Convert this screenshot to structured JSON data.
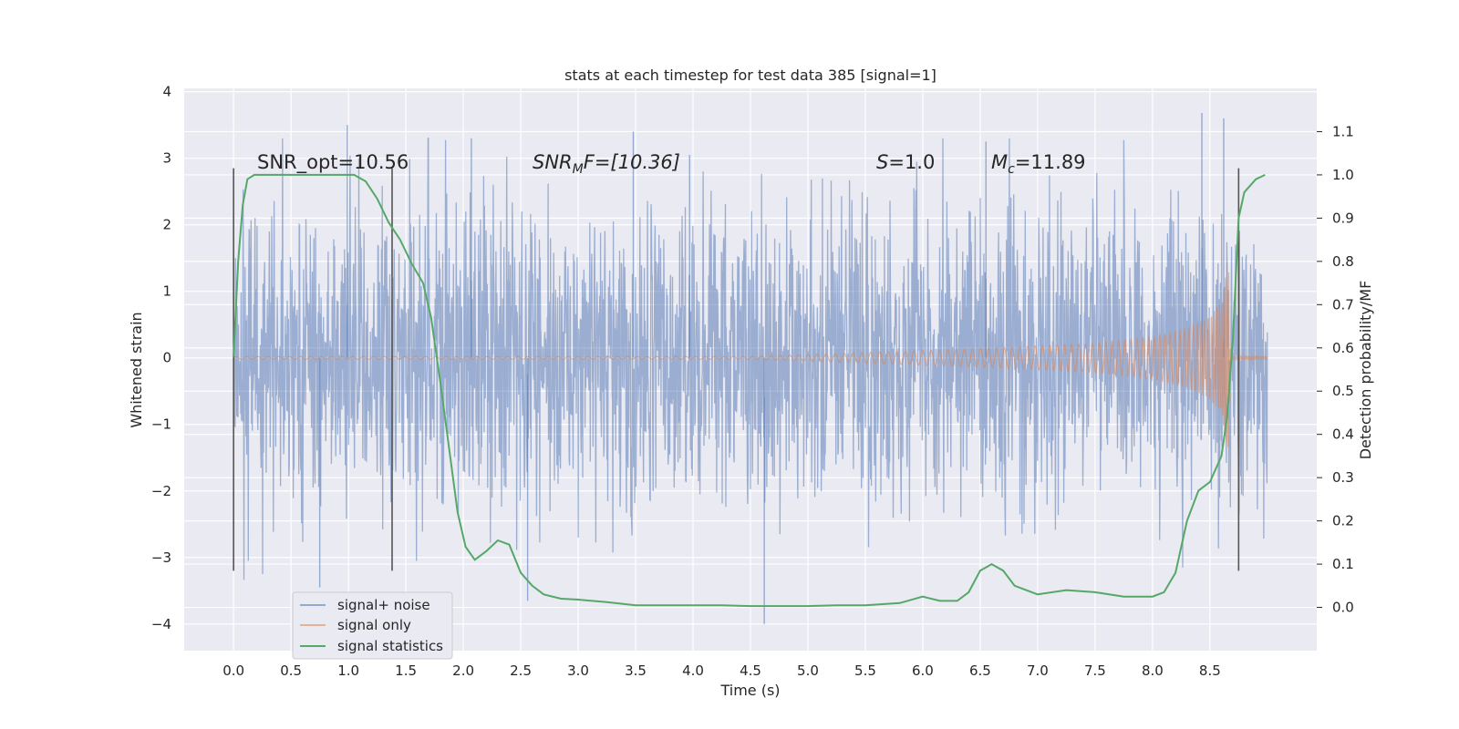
{
  "chart_data": {
    "type": "line",
    "title": "stats at each timestep for test data 385 [signal=1]",
    "xlabel": "Time (s)",
    "ylabel": "Whitened strain",
    "y2label": "Detection probability/MF",
    "xlim": [
      -0.43,
      9.43
    ],
    "ylim": [
      -4.4,
      4.05
    ],
    "y2lim": [
      -0.1,
      1.2
    ],
    "xticks": [
      "0.0",
      "0.5",
      "1.0",
      "1.5",
      "2.0",
      "2.5",
      "3.0",
      "3.5",
      "4.0",
      "4.5",
      "5.0",
      "5.5",
      "6.0",
      "6.5",
      "7.0",
      "7.5",
      "8.0",
      "8.5"
    ],
    "xtick_values": [
      0,
      0.5,
      1,
      1.5,
      2,
      2.5,
      3,
      3.5,
      4,
      4.5,
      5,
      5.5,
      6,
      6.5,
      7,
      7.5,
      8,
      8.5
    ],
    "yticks": [
      "4",
      "3",
      "2",
      "1",
      "0",
      "−1",
      "−2",
      "−3",
      "−4"
    ],
    "ytick_values": [
      4,
      3,
      2,
      1,
      0,
      -1,
      -2,
      -3,
      -4
    ],
    "y2ticks": [
      "0.0",
      "0.1",
      "0.2",
      "0.3",
      "0.4",
      "0.5",
      "0.6",
      "0.7",
      "0.8",
      "0.9",
      "1.0",
      "1.1"
    ],
    "y2tick_values": [
      0,
      0.1,
      0.2,
      0.3,
      0.4,
      0.5,
      0.6,
      0.7,
      0.8,
      0.9,
      1.0,
      1.1
    ],
    "grid": true,
    "legend_position": "lower-left",
    "annotations": {
      "snr_opt": "SNR_opt=10.56",
      "snr_mf_symbol": "SNR",
      "snr_mf_sub": "M",
      "snr_mf_rest": "F=[10.36]",
      "s_symbol": "S",
      "s_rest": "=1.0",
      "mc_symbol": "M",
      "mc_sub": "c",
      "mc_rest": "=11.89"
    },
    "markers": [
      {
        "x": 0.0,
        "y_range": [
          -3.2,
          2.85
        ]
      },
      {
        "x": 1.38,
        "y_range": [
          -3.2,
          2.85
        ]
      },
      {
        "x": 8.75,
        "y_range": [
          -3.2,
          2.85
        ]
      }
    ],
    "series": [
      {
        "name": "signal+ noise",
        "color": "#4c72b0",
        "x_range": [
          0.0,
          9.0
        ],
        "typical_band": [
          -1.5,
          1.6
        ],
        "extremes": [
          [
            0.99,
            3.5
          ],
          [
            2.07,
            3.3
          ],
          [
            3.48,
            3.4
          ],
          [
            4.62,
            -4.0
          ],
          [
            2.56,
            -3.65
          ],
          [
            0.75,
            -3.45
          ],
          [
            8.43,
            3.68
          ],
          [
            8.62,
            3.6
          ],
          [
            6.55,
            3.25
          ],
          [
            3.97,
            3.05
          ]
        ]
      },
      {
        "name": "signal only",
        "color": "#dd8452",
        "x_range": [
          0.0,
          9.0
        ],
        "envelope": [
          [
            0.0,
            0.02
          ],
          [
            4.5,
            0.02
          ],
          [
            5.5,
            0.08
          ],
          [
            6.5,
            0.14
          ],
          [
            7.5,
            0.22
          ],
          [
            8.0,
            0.32
          ],
          [
            8.3,
            0.45
          ],
          [
            8.5,
            0.62
          ],
          [
            8.6,
            0.85
          ],
          [
            8.66,
            1.6
          ],
          [
            8.68,
            0.02
          ],
          [
            9.0,
            0.02
          ]
        ]
      },
      {
        "name": "signal statistics",
        "color": "#55a868",
        "axis": "right",
        "x": [
          0.0,
          0.04,
          0.08,
          0.12,
          0.18,
          0.25,
          0.35,
          0.5,
          0.7,
          0.9,
          1.05,
          1.15,
          1.25,
          1.35,
          1.45,
          1.55,
          1.65,
          1.72,
          1.8,
          1.88,
          1.95,
          2.02,
          2.1,
          2.2,
          2.3,
          2.4,
          2.5,
          2.6,
          2.7,
          2.85,
          3.0,
          3.25,
          3.5,
          4.0,
          4.25,
          4.5,
          4.75,
          5.0,
          5.25,
          5.5,
          5.8,
          6.0,
          6.15,
          6.3,
          6.4,
          6.5,
          6.6,
          6.7,
          6.8,
          7.0,
          7.25,
          7.5,
          7.75,
          8.0,
          8.1,
          8.2,
          8.3,
          8.4,
          8.5,
          8.6,
          8.65,
          8.7,
          8.75,
          8.8,
          8.9,
          8.98
        ],
        "y": [
          0.58,
          0.8,
          0.93,
          0.99,
          1.0,
          1.0,
          1.0,
          1.0,
          1.0,
          1.0,
          1.0,
          0.985,
          0.945,
          0.89,
          0.85,
          0.795,
          0.75,
          0.67,
          0.52,
          0.36,
          0.22,
          0.14,
          0.11,
          0.13,
          0.155,
          0.145,
          0.08,
          0.05,
          0.03,
          0.02,
          0.018,
          0.012,
          0.005,
          0.005,
          0.005,
          0.003,
          0.003,
          0.003,
          0.005,
          0.005,
          0.01,
          0.025,
          0.015,
          0.015,
          0.035,
          0.085,
          0.1,
          0.085,
          0.05,
          0.03,
          0.04,
          0.035,
          0.025,
          0.025,
          0.035,
          0.08,
          0.2,
          0.27,
          0.29,
          0.35,
          0.44,
          0.62,
          0.9,
          0.96,
          0.99,
          1.0
        ]
      }
    ]
  },
  "legend": {
    "items": [
      {
        "label": "signal+ noise",
        "color": "#4c72b0"
      },
      {
        "label": "signal only",
        "color": "#dd8452"
      },
      {
        "label": "signal statistics",
        "color": "#55a868"
      }
    ]
  }
}
